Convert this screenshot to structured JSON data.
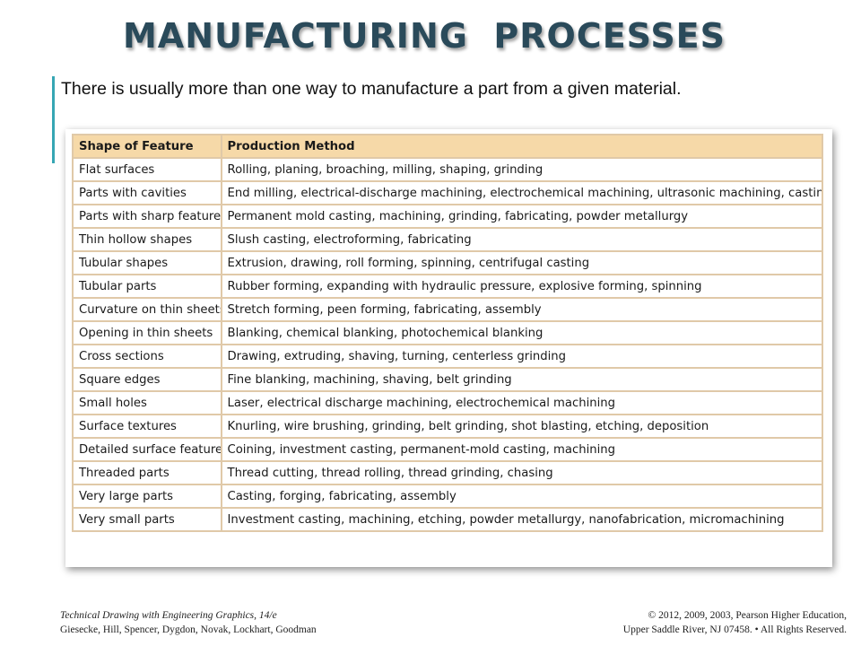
{
  "title": "MANUFACTURING  PROCESSES",
  "subtitle": "There is usually more than one way to manufacture a part from a given material.",
  "table": {
    "headers": [
      "Shape of Feature",
      "Production Method"
    ],
    "rows": [
      [
        "Flat surfaces",
        "Rolling, planing, broaching, milling, shaping, grinding"
      ],
      [
        "Parts with cavities",
        "End milling, electrical-discharge machining, electrochemical machining, ultrasonic machining, casting"
      ],
      [
        "Parts with sharp features",
        "Permanent mold casting, machining, grinding, fabricating, powder metallurgy"
      ],
      [
        "Thin hollow shapes",
        "Slush casting, electroforming, fabricating"
      ],
      [
        "Tubular shapes",
        "Extrusion, drawing, roll forming, spinning, centrifugal casting"
      ],
      [
        "Tubular parts",
        "Rubber forming, expanding with hydraulic pressure, explosive forming, spinning"
      ],
      [
        "Curvature on thin sheets",
        "Stretch forming, peen forming, fabricating, assembly"
      ],
      [
        "Opening in thin sheets",
        "Blanking, chemical blanking, photochemical blanking"
      ],
      [
        "Cross sections",
        "Drawing, extruding, shaving, turning, centerless grinding"
      ],
      [
        "Square edges",
        "Fine blanking, machining, shaving, belt grinding"
      ],
      [
        "Small holes",
        "Laser, electrical discharge machining, electrochemical machining"
      ],
      [
        "Surface textures",
        "Knurling, wire brushing, grinding, belt grinding, shot blasting, etching, deposition"
      ],
      [
        "Detailed surface features",
        "Coining, investment casting, permanent-mold casting, machining"
      ],
      [
        "Threaded parts",
        "Thread cutting, thread rolling, thread grinding, chasing"
      ],
      [
        "Very large parts",
        "Casting, forging, fabricating, assembly"
      ],
      [
        "Very small parts",
        "Investment casting, machining, etching, powder metallurgy, nanofabrication, micromachining"
      ]
    ]
  },
  "footer": {
    "book_title": "Technical Drawing with Engineering Graphics, 14/e",
    "authors": "Giesecke,  Hill,  Spencer,  Dygdon,  Novak,  Lockhart,  Goodman",
    "copyright_line1": "© 2012, 2009, 2003, Pearson Higher Education,",
    "copyright_line2": "Upper Saddle River, NJ 07458. • All Rights Reserved."
  },
  "colors": {
    "title": "#2a4a5a",
    "accent_bar": "#36a6b4",
    "table_header_bg": "#f6d9a8",
    "table_border": "#e0c9a8"
  }
}
